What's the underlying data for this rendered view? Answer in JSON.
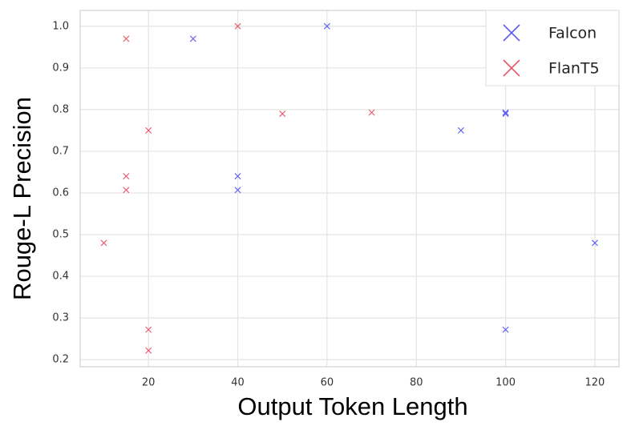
{
  "chart_data": {
    "type": "scatter",
    "xlabel": "Output Token Length",
    "ylabel": "Rouge-L Precision",
    "xlim": [
      4.7,
      125.4
    ],
    "xticks": [
      20,
      40,
      60,
      80,
      100,
      120
    ],
    "ylim": [
      0.183,
      1.038
    ],
    "yticks": [
      0.2,
      0.3,
      0.4,
      0.5,
      0.6,
      0.7,
      0.8,
      0.9,
      {
        "value": 1,
        "label": "1.0"
      }
    ],
    "grid": true,
    "legend": "upper right",
    "series": [
      {
        "name": "Falcon",
        "color": "#5a5af2",
        "x": [
          30,
          60,
          40,
          40,
          90,
          100,
          100,
          120,
          100
        ],
        "values": [
          0.97,
          1.0,
          0.64,
          0.607,
          0.75,
          0.79,
          0.793,
          0.48,
          0.272
        ]
      },
      {
        "name": "FlanT5",
        "color": "#e8536a",
        "x": [
          15,
          40,
          20,
          15,
          15,
          10,
          50,
          70,
          20,
          20
        ],
        "values": [
          0.97,
          1.0,
          0.75,
          0.64,
          0.607,
          0.48,
          0.79,
          0.793,
          0.272,
          0.222
        ]
      }
    ]
  }
}
